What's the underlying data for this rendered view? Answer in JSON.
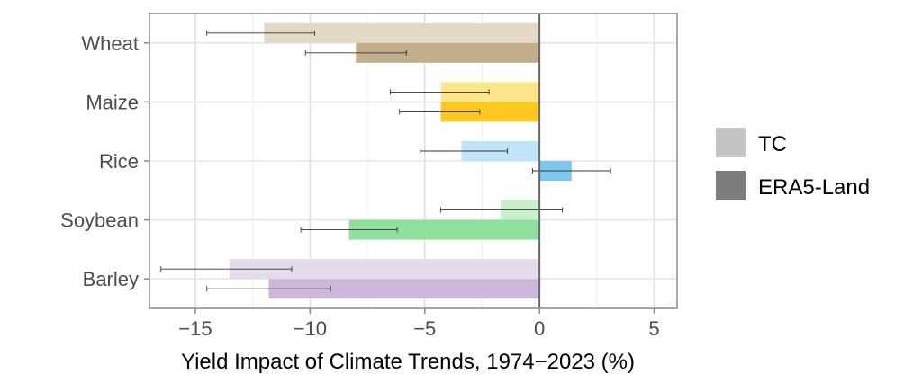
{
  "chart_data": {
    "type": "bar",
    "orientation": "horizontal",
    "title": "",
    "xlabel": "Yield Impact of Climate Trends, 1974−2023 (%)",
    "ylabel": "",
    "xlim": [
      -17,
      6
    ],
    "x_ticks": [
      -15,
      -10,
      -5,
      0,
      5
    ],
    "x_tick_labels": [
      "−15",
      "−10",
      "−5",
      "0",
      "5"
    ],
    "grid": true,
    "legend_position": "right",
    "categories": [
      "Wheat",
      "Maize",
      "Rice",
      "Soybean",
      "Barley"
    ],
    "series": [
      {
        "name": "TC",
        "values": [
          -12.0,
          -4.3,
          -3.4,
          -1.7,
          -13.5
        ],
        "err_low": [
          -14.5,
          -6.5,
          -5.2,
          -4.3,
          -16.5
        ],
        "err_high": [
          -9.8,
          -2.2,
          -1.4,
          1.0,
          -10.8
        ],
        "colors": [
          "#e3d9c6",
          "#fde68a",
          "#bfe3f7",
          "#c9efcb",
          "#e6dbeb"
        ]
      },
      {
        "name": "ERA5-Land",
        "values": [
          -8.0,
          -4.3,
          1.4,
          -8.3,
          -11.8
        ],
        "err_low": [
          -10.2,
          -6.1,
          -0.3,
          -10.4,
          -14.5
        ],
        "err_high": [
          -5.8,
          -2.6,
          3.1,
          -6.2,
          -9.1
        ],
        "colors": [
          "#c3ae8c",
          "#fdc822",
          "#7ec8ee",
          "#8fe09d",
          "#cbb8da"
        ]
      }
    ],
    "legend": [
      {
        "label": "TC",
        "color": "#c4c4c4"
      },
      {
        "label": "ERA5-Land",
        "color": "#7d7d7d"
      }
    ]
  }
}
